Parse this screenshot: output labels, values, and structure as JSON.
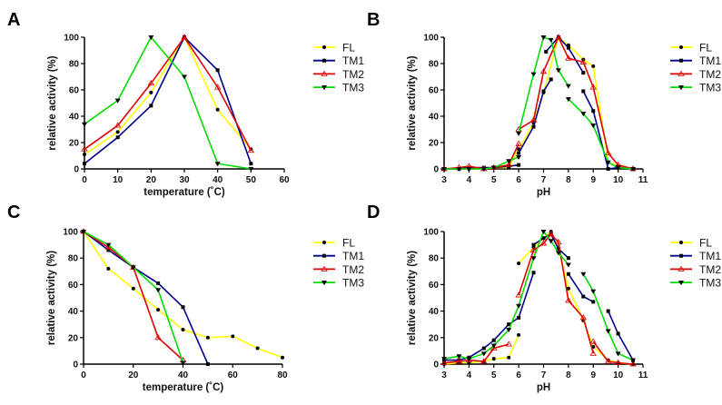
{
  "chart_data": [
    {
      "type": "line",
      "panel_label": "A",
      "xlabel": "temperature (˚C)",
      "ylabel": "relative activity (%)",
      "xlim": [
        0,
        60
      ],
      "ylim": [
        0,
        100
      ],
      "xticks": [
        0,
        10,
        20,
        30,
        40,
        50,
        60
      ],
      "yticks": [
        0,
        20,
        40,
        60,
        80,
        100
      ],
      "grid": false,
      "legend": "right",
      "series": [
        {
          "name": "FL",
          "color": "#ffff00",
          "marker": "circle",
          "points": [
            [
              0,
              11
            ],
            [
              10,
              28
            ],
            [
              20,
              58
            ],
            [
              30,
              100
            ],
            [
              40,
              45
            ],
            [
              50,
              15
            ]
          ]
        },
        {
          "name": "TM1",
          "color": "#00008b",
          "marker": "square",
          "points": [
            [
              0,
              4
            ],
            [
              10,
              24
            ],
            [
              20,
              48
            ],
            [
              30,
              100
            ],
            [
              40,
              75
            ],
            [
              50,
              4
            ]
          ]
        },
        {
          "name": "TM2",
          "color": "#e00000",
          "marker": "triangle-open",
          "points": [
            [
              0,
              15
            ],
            [
              10,
              33
            ],
            [
              20,
              65
            ],
            [
              30,
              100
            ],
            [
              40,
              62
            ],
            [
              50,
              14
            ]
          ]
        },
        {
          "name": "TM3",
          "color": "#00dd00",
          "marker": "triangle-down",
          "points": [
            [
              0,
              34
            ],
            [
              10,
              52
            ],
            [
              20,
              100
            ],
            [
              30,
              70
            ],
            [
              40,
              4
            ],
            [
              50,
              0
            ]
          ]
        }
      ]
    },
    {
      "type": "line",
      "panel_label": "B",
      "xlabel": "pH",
      "ylabel": "relative activity (%)",
      "xlim": [
        3,
        11
      ],
      "ylim": [
        0,
        100
      ],
      "xticks": [
        3,
        4,
        5,
        6,
        7,
        8,
        9,
        10,
        11
      ],
      "yticks": [
        0,
        20,
        40,
        60,
        80,
        100
      ],
      "grid": false,
      "legend": "right",
      "series": [
        {
          "name": "FL",
          "color": "#ffff00",
          "marker": "circle",
          "points": [
            [
              3,
              0
            ],
            [
              3.6,
              0
            ],
            [
              4,
              0
            ],
            [
              4.6,
              0
            ],
            [
              5,
              1
            ],
            [
              5.6,
              1
            ],
            [
              6,
              15
            ],
            [
              6.6,
              35
            ],
            [
              7,
              58
            ],
            [
              7.6,
              100
            ],
            [
              8,
              94
            ],
            [
              8.6,
              83
            ],
            [
              9,
              78
            ],
            [
              9.6,
              5
            ],
            [
              10,
              2
            ],
            [
              10.6,
              0
            ]
          ]
        },
        {
          "name": "TM1",
          "color": "#00008b",
          "marker": "square",
          "points": [
            [
              3,
              0
            ],
            [
              3.6,
              0
            ],
            [
              4,
              1
            ],
            [
              4.6,
              1
            ],
            [
              5,
              1
            ],
            [
              5.6,
              2
            ],
            [
              6,
              3
            ],
            null,
            [
              6,
              12
            ],
            [
              6.6,
              32
            ],
            [
              7,
              59
            ],
            [
              7.3,
              68
            ],
            null,
            [
              7.1,
              89
            ],
            [
              7.6,
              100
            ],
            [
              8,
              92
            ],
            [
              8.6,
              73
            ],
            null,
            [
              8.6,
              59
            ],
            [
              9,
              44
            ],
            [
              9.6,
              0
            ],
            [
              10,
              1
            ],
            [
              10.6,
              0
            ]
          ]
        },
        {
          "name": "TM2",
          "color": "#e00000",
          "marker": "triangle-open",
          "points": [
            [
              3,
              0
            ],
            [
              3.6,
              1
            ],
            [
              4,
              2
            ],
            [
              4.6,
              0
            ],
            [
              5,
              1
            ],
            [
              5.6,
              3
            ],
            [
              6,
              19
            ],
            null,
            [
              6,
              30
            ],
            [
              6.6,
              37
            ],
            [
              7,
              74
            ],
            [
              7.6,
              100
            ],
            [
              8,
              84
            ],
            [
              8.6,
              81
            ],
            [
              9,
              62
            ],
            [
              9.6,
              12
            ],
            [
              10,
              3
            ],
            [
              10.6,
              0
            ]
          ]
        },
        {
          "name": "TM3",
          "color": "#00dd00",
          "marker": "triangle-down",
          "points": [
            [
              3,
              0
            ],
            [
              3.6,
              0
            ],
            [
              4,
              0
            ],
            [
              4.6,
              0
            ],
            [
              5,
              1
            ],
            [
              5.6,
              6
            ],
            [
              6,
              9
            ],
            null,
            [
              6,
              27
            ],
            [
              6.6,
              72
            ],
            [
              7,
              100
            ],
            [
              7.3,
              98
            ],
            [
              7.6,
              75
            ],
            [
              8,
              63
            ],
            null,
            [
              8,
              53
            ],
            [
              8.6,
              42
            ],
            [
              9,
              33
            ],
            [
              9.6,
              5
            ],
            [
              10,
              1
            ],
            [
              10.6,
              0
            ]
          ]
        }
      ]
    },
    {
      "type": "line",
      "panel_label": "C",
      "xlabel": "temperature (˚C)",
      "ylabel": "relative activity (%)",
      "xlim": [
        0,
        80
      ],
      "ylim": [
        0,
        100
      ],
      "xticks": [
        0,
        20,
        40,
        60,
        80
      ],
      "yticks": [
        0,
        20,
        40,
        60,
        80,
        100
      ],
      "grid": false,
      "legend": "right",
      "series": [
        {
          "name": "FL",
          "color": "#ffff00",
          "marker": "circle",
          "points": [
            [
              0,
              100
            ],
            [
              10,
              72
            ],
            [
              20,
              57
            ],
            [
              30,
              41
            ],
            [
              40,
              26
            ],
            [
              50,
              20
            ],
            [
              60,
              21
            ],
            [
              70,
              12
            ],
            [
              80,
              5
            ]
          ]
        },
        {
          "name": "TM1",
          "color": "#00008b",
          "marker": "square",
          "points": [
            [
              0,
              100
            ],
            [
              10,
              86
            ],
            [
              20,
              73
            ],
            [
              30,
              61
            ],
            [
              40,
              43
            ],
            [
              50,
              0
            ]
          ]
        },
        {
          "name": "TM2",
          "color": "#e00000",
          "marker": "triangle-open",
          "points": [
            [
              0,
              100
            ],
            [
              10,
              88
            ],
            [
              20,
              73
            ],
            [
              30,
              20
            ],
            [
              40,
              3
            ]
          ]
        },
        {
          "name": "TM3",
          "color": "#00dd00",
          "marker": "triangle-down",
          "points": [
            [
              0,
              100
            ],
            [
              10,
              90
            ],
            [
              20,
              73
            ],
            [
              30,
              56
            ],
            [
              40,
              1
            ]
          ]
        }
      ]
    },
    {
      "type": "line",
      "panel_label": "D",
      "xlabel": "pH",
      "ylabel": "relative activity (%)",
      "xlim": [
        3,
        11
      ],
      "ylim": [
        0,
        100
      ],
      "xticks": [
        3,
        4,
        5,
        6,
        7,
        8,
        9,
        10,
        11
      ],
      "yticks": [
        0,
        20,
        40,
        60,
        80,
        100
      ],
      "grid": false,
      "legend": "right",
      "series": [
        {
          "name": "FL",
          "color": "#ffff00",
          "marker": "circle",
          "points": [
            [
              3,
              0
            ],
            [
              3.6,
              1
            ],
            [
              4,
              1
            ],
            [
              4.6,
              2
            ],
            [
              5,
              4
            ],
            [
              5.6,
              5
            ],
            [
              6,
              22
            ],
            null,
            [
              6,
              76
            ],
            [
              6.6,
              88
            ],
            [
              7,
              95
            ],
            [
              7.3,
              100
            ],
            [
              7.6,
              88
            ],
            [
              8,
              57
            ],
            [
              8.6,
              33
            ],
            [
              9,
              13
            ],
            [
              9.6,
              3
            ],
            [
              10,
              1
            ],
            [
              10.6,
              0
            ]
          ]
        },
        {
          "name": "TM1",
          "color": "#00008b",
          "marker": "square",
          "points": [
            [
              3,
              3
            ],
            [
              3.6,
              3
            ],
            [
              4,
              5
            ],
            [
              4.6,
              12
            ],
            [
              5,
              18
            ],
            [
              5.6,
              30
            ],
            [
              6,
              35
            ],
            [
              6.6,
              69
            ],
            null,
            [
              6.6,
              90
            ],
            [
              7,
              95
            ],
            [
              7.3,
              98
            ],
            [
              7.6,
              87
            ],
            [
              8,
              80
            ],
            null,
            [
              8,
              68
            ],
            [
              8.6,
              51
            ],
            [
              9,
              47
            ],
            null,
            [
              9.6,
              40
            ],
            [
              10,
              23
            ],
            [
              10.6,
              3
            ]
          ]
        },
        {
          "name": "TM2",
          "color": "#e00000",
          "marker": "triangle-open",
          "points": [
            [
              3,
              1
            ],
            [
              3.6,
              2
            ],
            [
              4,
              3
            ],
            [
              4.6,
              2
            ],
            [
              5,
              12
            ],
            [
              5.6,
              15
            ],
            null,
            [
              6,
              52
            ],
            [
              6.6,
              86
            ],
            [
              7,
              91
            ],
            [
              7.3,
              98
            ],
            [
              7.6,
              92
            ],
            [
              8,
              48
            ],
            [
              8.6,
              35
            ],
            [
              9,
              8
            ],
            null,
            [
              9,
              17
            ],
            [
              9.6,
              2
            ],
            [
              10,
              1
            ],
            [
              10.6,
              0
            ]
          ]
        },
        {
          "name": "TM3",
          "color": "#00dd00",
          "marker": "triangle-down",
          "points": [
            [
              3,
              4
            ],
            [
              3.6,
              6
            ],
            [
              4,
              4
            ],
            [
              4.6,
              8
            ],
            [
              5,
              14
            ],
            [
              5.6,
              26
            ],
            [
              6,
              44
            ],
            [
              6.6,
              80
            ],
            [
              7,
              100
            ],
            [
              7.3,
              93
            ],
            [
              7.6,
              84
            ],
            [
              8,
              75
            ],
            null,
            [
              8.6,
              68
            ],
            [
              9,
              55
            ],
            [
              9.6,
              25
            ],
            [
              10,
              8
            ],
            [
              10.6,
              3
            ]
          ]
        }
      ]
    }
  ]
}
